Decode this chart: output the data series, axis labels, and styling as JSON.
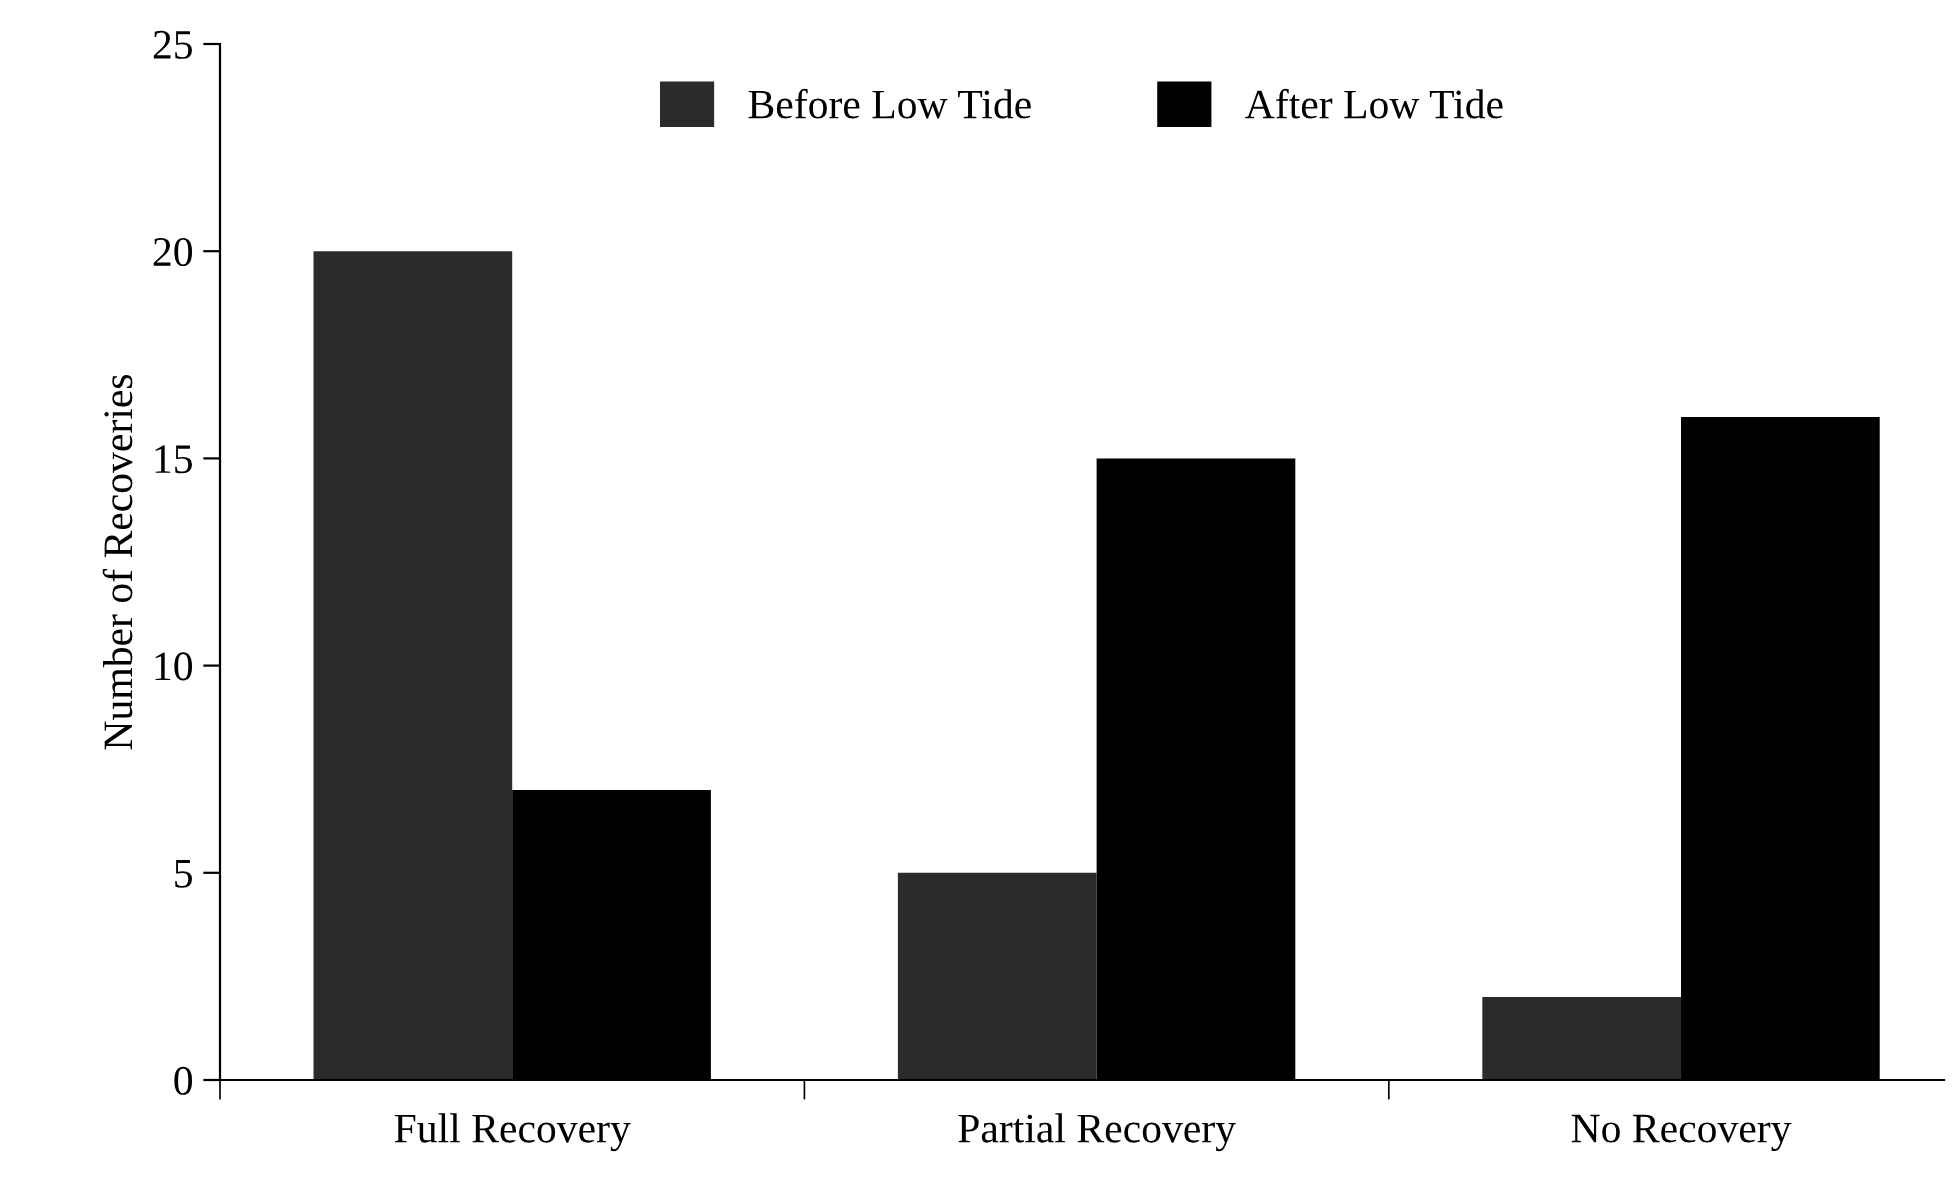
{
  "chart_data": {
    "type": "bar",
    "ylabel": "Number of Recoveries",
    "categories": [
      "Full Recovery",
      "Partial Recovery",
      "No Recovery"
    ],
    "series": [
      {
        "name": "Before Low Tide",
        "color": "#2b2b2b",
        "values": [
          20,
          5,
          2
        ]
      },
      {
        "name": "After Low Tide",
        "color": "#000000",
        "values": [
          7,
          15,
          16
        ]
      }
    ],
    "ylim": [
      0,
      25
    ],
    "yticks": [
      0,
      5,
      10,
      15,
      20,
      25
    ],
    "grid": false,
    "legend": "top"
  }
}
